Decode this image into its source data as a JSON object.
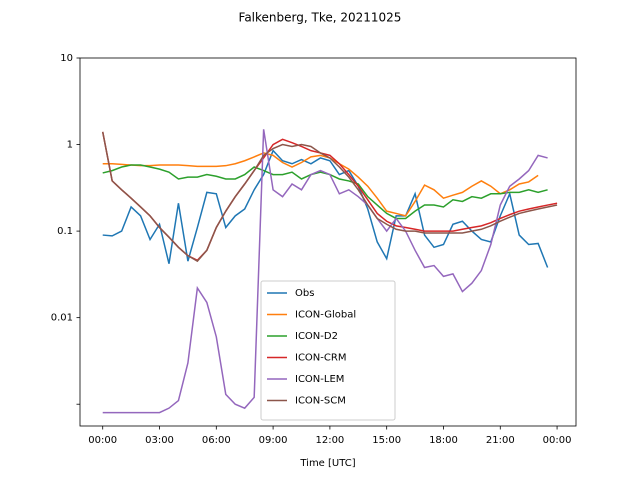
{
  "chart_data": {
    "type": "line",
    "title": "Falkenberg, Tke, 20211025",
    "x_label": "Time [UTC]",
    "x": [
      0,
      0.5,
      1,
      1.5,
      2,
      2.5,
      3,
      3.5,
      4,
      4.5,
      5,
      5.5,
      6,
      6.5,
      7,
      7.5,
      8,
      8.5,
      9,
      9.5,
      10,
      10.5,
      11,
      11.5,
      12,
      12.5,
      13,
      13.5,
      14,
      14.5,
      15,
      15.5,
      16,
      16.5,
      17,
      17.5,
      18,
      18.5,
      19,
      19.5,
      20,
      20.5,
      21,
      21.5,
      22,
      22.5,
      23,
      23.5,
      24
    ],
    "xlim": [
      -1.2,
      25
    ],
    "xticks": [
      {
        "value": 0,
        "label": "00:00"
      },
      {
        "value": 3,
        "label": "03:00"
      },
      {
        "value": 6,
        "label": "06:00"
      },
      {
        "value": 9,
        "label": "09:00"
      },
      {
        "value": 12,
        "label": "12:00"
      },
      {
        "value": 15,
        "label": "15:00"
      },
      {
        "value": 18,
        "label": "18:00"
      },
      {
        "value": 21,
        "label": "21:00"
      },
      {
        "value": 24,
        "label": "00:00"
      }
    ],
    "ylim": [
      0.00056,
      10
    ],
    "y_scale": "log",
    "yticks": [
      {
        "value": 0.001,
        "label": null
      },
      0.01,
      0.1,
      1,
      10
    ],
    "legend": "lower center",
    "series": [
      {
        "name": "Obs",
        "color": "#1f77b4",
        "values": [
          0.09,
          0.088,
          0.1,
          0.19,
          0.15,
          0.08,
          0.12,
          0.042,
          0.21,
          0.045,
          0.11,
          0.28,
          0.27,
          0.11,
          0.15,
          0.18,
          0.3,
          0.45,
          0.85,
          0.65,
          0.6,
          0.67,
          0.6,
          0.7,
          0.65,
          0.45,
          0.5,
          0.33,
          0.18,
          0.075,
          0.048,
          0.15,
          0.15,
          0.27,
          0.09,
          0.065,
          0.07,
          0.12,
          0.13,
          0.1,
          0.08,
          0.075,
          0.15,
          0.27,
          0.09,
          0.07,
          0.072,
          0.038,
          null
        ]
      },
      {
        "name": "ICON-Global",
        "color": "#ff7f0e",
        "values": [
          0.6,
          0.6,
          0.59,
          0.58,
          0.57,
          0.57,
          0.58,
          0.58,
          0.58,
          0.57,
          0.56,
          0.56,
          0.56,
          0.57,
          0.6,
          0.65,
          0.72,
          0.8,
          0.75,
          0.62,
          0.55,
          0.62,
          0.72,
          0.75,
          0.7,
          0.6,
          0.52,
          0.42,
          0.33,
          0.24,
          0.17,
          0.16,
          0.15,
          0.22,
          0.34,
          0.3,
          0.24,
          0.26,
          0.28,
          0.33,
          0.38,
          0.33,
          0.27,
          0.3,
          0.35,
          0.37,
          0.44,
          null,
          null
        ]
      },
      {
        "name": "ICON-D2",
        "color": "#2ca02c",
        "values": [
          0.47,
          0.5,
          0.55,
          0.58,
          0.58,
          0.55,
          0.52,
          0.48,
          0.4,
          0.42,
          0.42,
          0.45,
          0.43,
          0.4,
          0.4,
          0.45,
          0.55,
          0.5,
          0.45,
          0.45,
          0.48,
          0.4,
          0.45,
          0.48,
          0.45,
          0.4,
          0.38,
          0.35,
          0.25,
          0.2,
          0.16,
          0.14,
          0.14,
          0.17,
          0.2,
          0.2,
          0.19,
          0.23,
          0.22,
          0.25,
          0.24,
          0.27,
          0.27,
          0.28,
          0.28,
          0.3,
          0.28,
          0.3,
          null
        ]
      },
      {
        "name": "ICON-CRM",
        "color": "#d62728",
        "values": [
          1.4,
          0.38,
          0.3,
          0.24,
          0.19,
          0.15,
          0.11,
          0.085,
          0.065,
          0.052,
          0.046,
          0.06,
          0.11,
          0.17,
          0.25,
          0.35,
          0.5,
          0.7,
          1.0,
          1.15,
          1.05,
          0.95,
          0.85,
          0.8,
          0.75,
          0.6,
          0.45,
          0.33,
          0.23,
          0.16,
          0.13,
          0.115,
          0.11,
          0.105,
          0.1,
          0.1,
          0.1,
          0.1,
          0.105,
          0.11,
          0.115,
          0.125,
          0.14,
          0.155,
          0.17,
          0.18,
          0.19,
          0.2,
          0.21
        ]
      },
      {
        "name": "ICON-LEM",
        "color": "#9467bd",
        "values": [
          0.0008,
          0.0008,
          0.0008,
          0.0008,
          0.0008,
          0.0008,
          0.0008,
          0.0009,
          0.0011,
          0.003,
          0.022,
          0.015,
          0.006,
          0.0013,
          0.001,
          0.0009,
          0.0012,
          1.5,
          0.3,
          0.25,
          0.35,
          0.3,
          0.45,
          0.5,
          0.45,
          0.27,
          0.3,
          0.25,
          0.2,
          0.14,
          0.1,
          0.14,
          0.1,
          0.06,
          0.038,
          0.04,
          0.03,
          0.032,
          0.02,
          0.025,
          0.035,
          0.07,
          0.2,
          0.33,
          0.4,
          0.5,
          0.75,
          0.7,
          null
        ]
      },
      {
        "name": "ICON-SCM",
        "color": "#8c564b",
        "values": [
          1.4,
          0.38,
          0.3,
          0.24,
          0.19,
          0.15,
          0.11,
          0.085,
          0.065,
          0.052,
          0.045,
          0.06,
          0.11,
          0.17,
          0.25,
          0.35,
          0.5,
          0.75,
          0.9,
          1.0,
          0.95,
          1.0,
          0.95,
          0.8,
          0.7,
          0.55,
          0.42,
          0.3,
          0.2,
          0.14,
          0.12,
          0.105,
          0.1,
          0.1,
          0.095,
          0.095,
          0.095,
          0.095,
          0.095,
          0.1,
          0.105,
          0.115,
          0.13,
          0.145,
          0.16,
          0.17,
          0.18,
          0.19,
          0.2
        ]
      }
    ]
  }
}
